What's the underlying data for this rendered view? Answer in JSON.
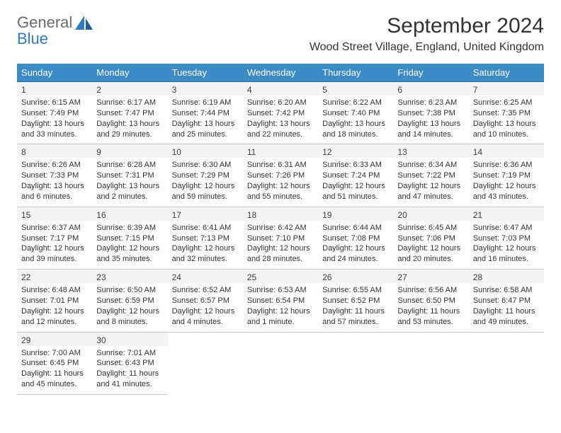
{
  "logo": {
    "general": "General",
    "blue": "Blue"
  },
  "title": "September 2024",
  "location": "Wood Street Village, England, United Kingdom",
  "colors": {
    "header_bg": "#3b8bc8",
    "header_text": "#ffffff",
    "rule_top": "#2d6ea6",
    "rule_bottom": "#c9c9c9",
    "daynum_bg": "#f3f3f3",
    "logo_blue": "#2f7bbf",
    "logo_gray": "#6b6b6b"
  },
  "weekdays": [
    "Sunday",
    "Monday",
    "Tuesday",
    "Wednesday",
    "Thursday",
    "Friday",
    "Saturday"
  ],
  "weeks": [
    [
      {
        "n": "1",
        "sr": "6:15 AM",
        "ss": "7:49 PM",
        "dl": "13 hours and 33 minutes."
      },
      {
        "n": "2",
        "sr": "6:17 AM",
        "ss": "7:47 PM",
        "dl": "13 hours and 29 minutes."
      },
      {
        "n": "3",
        "sr": "6:19 AM",
        "ss": "7:44 PM",
        "dl": "13 hours and 25 minutes."
      },
      {
        "n": "4",
        "sr": "6:20 AM",
        "ss": "7:42 PM",
        "dl": "13 hours and 22 minutes."
      },
      {
        "n": "5",
        "sr": "6:22 AM",
        "ss": "7:40 PM",
        "dl": "13 hours and 18 minutes."
      },
      {
        "n": "6",
        "sr": "6:23 AM",
        "ss": "7:38 PM",
        "dl": "13 hours and 14 minutes."
      },
      {
        "n": "7",
        "sr": "6:25 AM",
        "ss": "7:35 PM",
        "dl": "13 hours and 10 minutes."
      }
    ],
    [
      {
        "n": "8",
        "sr": "6:26 AM",
        "ss": "7:33 PM",
        "dl": "13 hours and 6 minutes."
      },
      {
        "n": "9",
        "sr": "6:28 AM",
        "ss": "7:31 PM",
        "dl": "13 hours and 2 minutes."
      },
      {
        "n": "10",
        "sr": "6:30 AM",
        "ss": "7:29 PM",
        "dl": "12 hours and 59 minutes."
      },
      {
        "n": "11",
        "sr": "6:31 AM",
        "ss": "7:26 PM",
        "dl": "12 hours and 55 minutes."
      },
      {
        "n": "12",
        "sr": "6:33 AM",
        "ss": "7:24 PM",
        "dl": "12 hours and 51 minutes."
      },
      {
        "n": "13",
        "sr": "6:34 AM",
        "ss": "7:22 PM",
        "dl": "12 hours and 47 minutes."
      },
      {
        "n": "14",
        "sr": "6:36 AM",
        "ss": "7:19 PM",
        "dl": "12 hours and 43 minutes."
      }
    ],
    [
      {
        "n": "15",
        "sr": "6:37 AM",
        "ss": "7:17 PM",
        "dl": "12 hours and 39 minutes."
      },
      {
        "n": "16",
        "sr": "6:39 AM",
        "ss": "7:15 PM",
        "dl": "12 hours and 35 minutes."
      },
      {
        "n": "17",
        "sr": "6:41 AM",
        "ss": "7:13 PM",
        "dl": "12 hours and 32 minutes."
      },
      {
        "n": "18",
        "sr": "6:42 AM",
        "ss": "7:10 PM",
        "dl": "12 hours and 28 minutes."
      },
      {
        "n": "19",
        "sr": "6:44 AM",
        "ss": "7:08 PM",
        "dl": "12 hours and 24 minutes."
      },
      {
        "n": "20",
        "sr": "6:45 AM",
        "ss": "7:06 PM",
        "dl": "12 hours and 20 minutes."
      },
      {
        "n": "21",
        "sr": "6:47 AM",
        "ss": "7:03 PM",
        "dl": "12 hours and 16 minutes."
      }
    ],
    [
      {
        "n": "22",
        "sr": "6:48 AM",
        "ss": "7:01 PM",
        "dl": "12 hours and 12 minutes."
      },
      {
        "n": "23",
        "sr": "6:50 AM",
        "ss": "6:59 PM",
        "dl": "12 hours and 8 minutes."
      },
      {
        "n": "24",
        "sr": "6:52 AM",
        "ss": "6:57 PM",
        "dl": "12 hours and 4 minutes."
      },
      {
        "n": "25",
        "sr": "6:53 AM",
        "ss": "6:54 PM",
        "dl": "12 hours and 1 minute."
      },
      {
        "n": "26",
        "sr": "6:55 AM",
        "ss": "6:52 PM",
        "dl": "11 hours and 57 minutes."
      },
      {
        "n": "27",
        "sr": "6:56 AM",
        "ss": "6:50 PM",
        "dl": "11 hours and 53 minutes."
      },
      {
        "n": "28",
        "sr": "6:58 AM",
        "ss": "6:47 PM",
        "dl": "11 hours and 49 minutes."
      }
    ],
    [
      {
        "n": "29",
        "sr": "7:00 AM",
        "ss": "6:45 PM",
        "dl": "11 hours and 45 minutes."
      },
      {
        "n": "30",
        "sr": "7:01 AM",
        "ss": "6:43 PM",
        "dl": "11 hours and 41 minutes."
      },
      null,
      null,
      null,
      null,
      null
    ]
  ],
  "labels": {
    "sunrise": "Sunrise:",
    "sunset": "Sunset:",
    "daylight": "Daylight:"
  }
}
